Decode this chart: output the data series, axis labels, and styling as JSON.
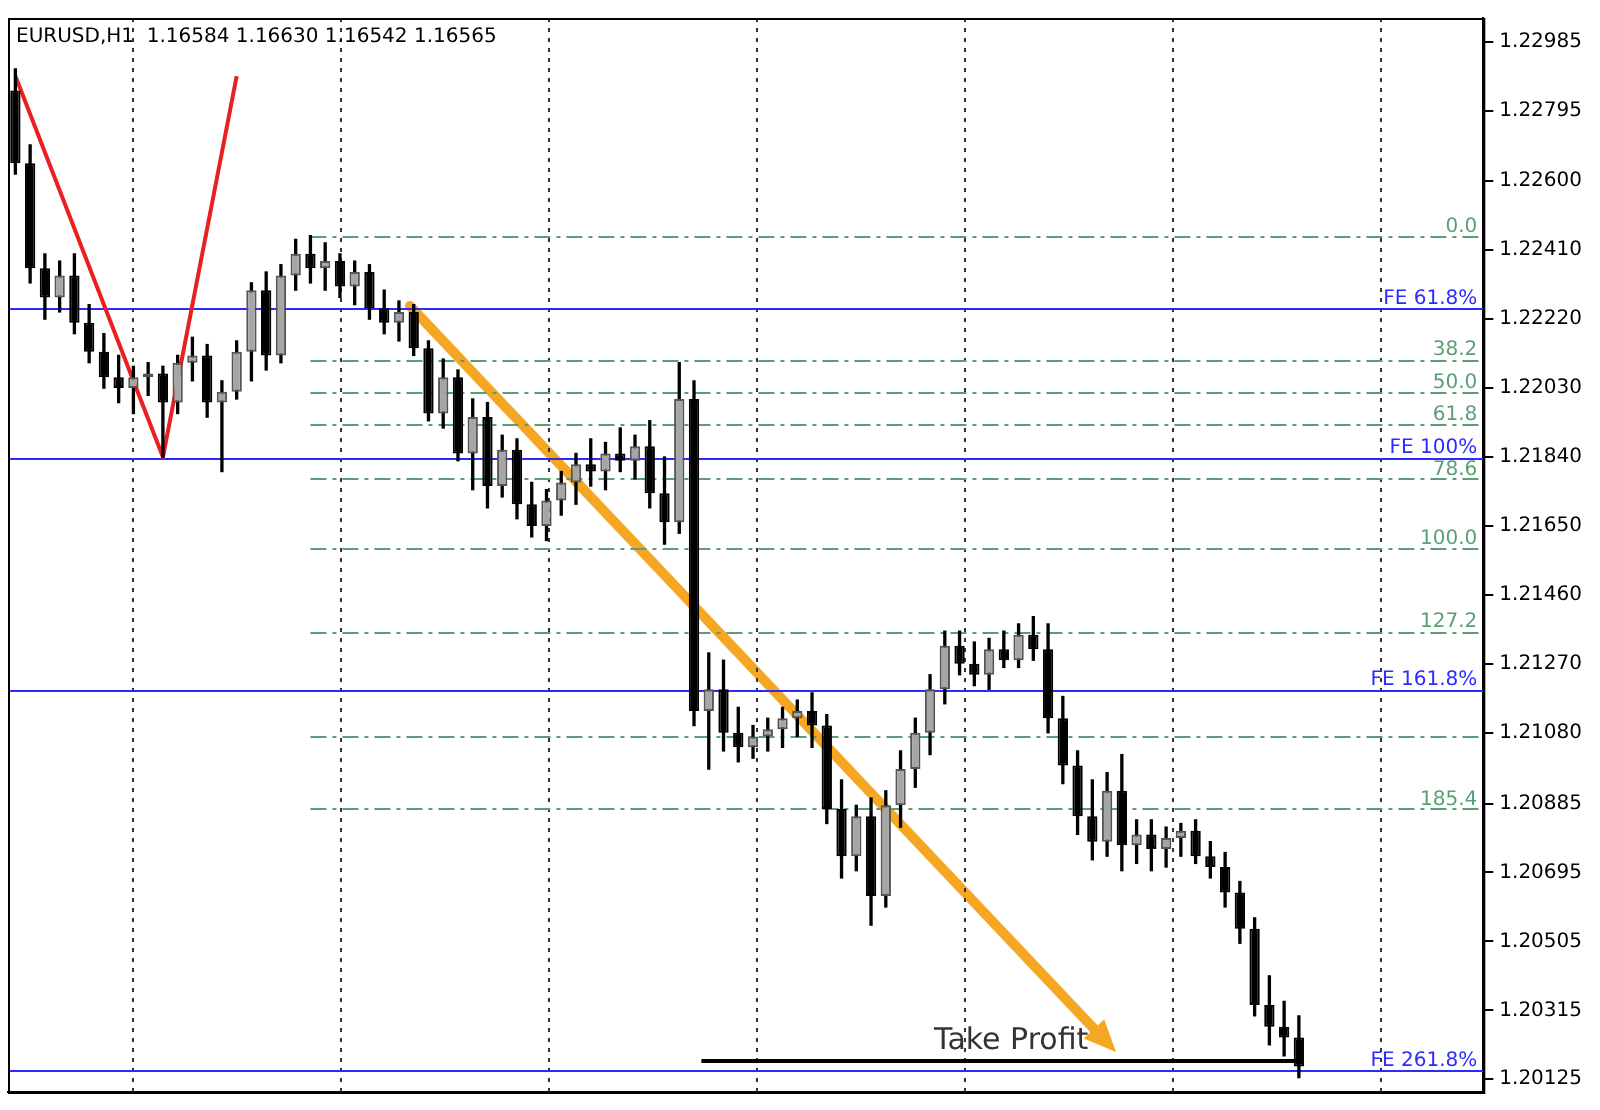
{
  "chart_data": {
    "type": "candlestick",
    "title": "EURUSD,H1  1.16584 1.16630 1.16542 1.16565",
    "tick_labels": "y",
    "legend": false,
    "categories": [
      null,
      null,
      null,
      null,
      null,
      null,
      null,
      null,
      null,
      null,
      null,
      null,
      null,
      null,
      null,
      null,
      null,
      null,
      null,
      null,
      null,
      null,
      null,
      null,
      null,
      null,
      null,
      null,
      null,
      null,
      null,
      null,
      null,
      null,
      null,
      null,
      null,
      null,
      null,
      null,
      null,
      null,
      null,
      null,
      null,
      null,
      null,
      null,
      null,
      null,
      null,
      null,
      null,
      null,
      null,
      null,
      null,
      null,
      null,
      null,
      null,
      null,
      null,
      null,
      null,
      null,
      null,
      null,
      null,
      null,
      null,
      null,
      null,
      null,
      null,
      null,
      null,
      null,
      null,
      null,
      null,
      null,
      null,
      null,
      null,
      null,
      null,
      null,
      null,
      null,
      null,
      null,
      null,
      null,
      null,
      null,
      null,
      null,
      null,
      null
    ],
    "ohlc": [
      [
        1.2285,
        1.2291,
        1.2262,
        1.2265
      ],
      [
        1.2265,
        1.227,
        1.2232,
        1.2236
      ],
      [
        1.2236,
        1.224,
        1.2222,
        1.2228
      ],
      [
        1.2228,
        1.2238,
        1.2224,
        1.2234
      ],
      [
        1.2234,
        1.224,
        1.2218,
        1.2221
      ],
      [
        1.2221,
        1.2226,
        1.221,
        1.2213
      ],
      [
        1.2213,
        1.2218,
        1.2203,
        1.2206
      ],
      [
        1.2206,
        1.2212,
        1.2199,
        1.2203
      ],
      [
        1.2203,
        1.2209,
        1.2196,
        1.2206
      ],
      [
        1.2206,
        1.221,
        1.2201,
        1.2207
      ],
      [
        1.2207,
        1.2209,
        1.2184,
        1.2199
      ],
      [
        1.2199,
        1.2212,
        1.2196,
        1.221
      ],
      [
        1.221,
        1.2217,
        1.2205,
        1.2212
      ],
      [
        1.2212,
        1.2215,
        1.2195,
        1.2199
      ],
      [
        1.2199,
        1.2205,
        1.218,
        1.2202
      ],
      [
        1.2202,
        1.2216,
        1.22,
        1.2213
      ],
      [
        1.2213,
        1.2232,
        1.2205,
        1.223
      ],
      [
        1.223,
        1.2235,
        1.2208,
        1.2212
      ],
      [
        1.2212,
        1.2237,
        1.221,
        1.2234
      ],
      [
        1.2234,
        1.2244,
        1.223,
        1.224
      ],
      [
        1.224,
        1.2245,
        1.2232,
        1.2236
      ],
      [
        1.2236,
        1.2243,
        1.223,
        1.2238
      ],
      [
        1.2238,
        1.224,
        1.2228,
        1.2231
      ],
      [
        1.2231,
        1.2238,
        1.2226,
        1.2235
      ],
      [
        1.2235,
        1.2237,
        1.2222,
        1.2225
      ],
      [
        1.2225,
        1.223,
        1.2218,
        1.2221
      ],
      [
        1.2221,
        1.2227,
        1.2216,
        1.2224
      ],
      [
        1.2224,
        1.2226,
        1.2212,
        1.2214
      ],
      [
        1.2214,
        1.2216,
        1.2194,
        1.2196
      ],
      [
        1.2196,
        1.2211,
        1.2192,
        1.2206
      ],
      [
        1.2206,
        1.2208,
        1.2183,
        1.2185
      ],
      [
        1.2185,
        1.22,
        1.2175,
        1.2195
      ],
      [
        1.2195,
        1.2199,
        1.217,
        1.2176
      ],
      [
        1.2176,
        1.219,
        1.2173,
        1.2186
      ],
      [
        1.2186,
        1.2189,
        1.2167,
        1.2171
      ],
      [
        1.2171,
        1.2177,
        1.2162,
        1.2165
      ],
      [
        1.2165,
        1.2175,
        1.2161,
        1.2172
      ],
      [
        1.2172,
        1.218,
        1.2168,
        1.2177
      ],
      [
        1.2177,
        1.2185,
        1.2171,
        1.2182
      ],
      [
        1.2182,
        1.2189,
        1.2176,
        1.218
      ],
      [
        1.218,
        1.2188,
        1.2175,
        1.2185
      ],
      [
        1.2185,
        1.2192,
        1.218,
        1.2183
      ],
      [
        1.2183,
        1.219,
        1.2178,
        1.2187
      ],
      [
        1.2187,
        1.2194,
        1.217,
        1.2174
      ],
      [
        1.2174,
        1.2184,
        1.216,
        1.2166
      ],
      [
        1.2166,
        1.221,
        1.2163,
        1.22
      ],
      [
        1.22,
        1.2205,
        1.211,
        1.2114
      ],
      [
        1.2114,
        1.213,
        1.2098,
        1.212
      ],
      [
        1.212,
        1.2128,
        1.2103,
        1.2108
      ],
      [
        1.2108,
        1.2115,
        1.21,
        1.2104
      ],
      [
        1.2104,
        1.211,
        1.2101,
        1.2107
      ],
      [
        1.2107,
        1.2112,
        1.2103,
        1.2109
      ],
      [
        1.2109,
        1.2115,
        1.2104,
        1.2112
      ],
      [
        1.2112,
        1.2117,
        1.2107,
        1.2114
      ],
      [
        1.2114,
        1.2119,
        1.2104,
        1.211
      ],
      [
        1.211,
        1.2113,
        1.2083,
        1.2087
      ],
      [
        1.2087,
        1.2095,
        1.2068,
        1.2074
      ],
      [
        1.2074,
        1.2088,
        1.207,
        1.2085
      ],
      [
        1.2085,
        1.209,
        1.2055,
        1.2063
      ],
      [
        1.2063,
        1.2092,
        1.206,
        1.2088
      ],
      [
        1.2088,
        1.2103,
        1.2082,
        1.2098
      ],
      [
        1.2098,
        1.2112,
        1.2093,
        1.2108
      ],
      [
        1.2108,
        1.2124,
        1.2102,
        1.212
      ],
      [
        1.212,
        1.2136,
        1.2116,
        1.2132
      ],
      [
        1.2132,
        1.2136,
        1.2124,
        1.2127
      ],
      [
        1.2127,
        1.2133,
        1.2121,
        1.2124
      ],
      [
        1.2124,
        1.2134,
        1.212,
        1.2131
      ],
      [
        1.2131,
        1.2136,
        1.2126,
        1.2128
      ],
      [
        1.2128,
        1.2138,
        1.2126,
        1.2135
      ],
      [
        1.2135,
        1.214,
        1.2128,
        1.2131
      ],
      [
        1.2131,
        1.2138,
        1.2108,
        1.2112
      ],
      [
        1.2112,
        1.2118,
        1.2094,
        1.2099
      ],
      [
        1.2099,
        1.2103,
        1.208,
        1.2085
      ],
      [
        1.2085,
        1.2095,
        1.2073,
        1.2078
      ],
      [
        1.2078,
        1.2097,
        1.2074,
        1.2092
      ],
      [
        1.2092,
        1.2102,
        1.207,
        1.2077
      ],
      [
        1.2077,
        1.2084,
        1.2072,
        1.208
      ],
      [
        1.208,
        1.2084,
        1.207,
        1.2076
      ],
      [
        1.2076,
        1.2082,
        1.2071,
        1.2079
      ],
      [
        1.2079,
        1.2083,
        1.2074,
        1.2081
      ],
      [
        1.2081,
        1.2084,
        1.2072,
        1.2074
      ],
      [
        1.2074,
        1.2078,
        1.2068,
        1.2071
      ],
      [
        1.2071,
        1.2075,
        1.206,
        1.2064
      ],
      [
        1.2064,
        1.2067,
        1.205,
        1.2054
      ],
      [
        1.2054,
        1.2057,
        1.203,
        1.2033
      ],
      [
        1.2033,
        1.2041,
        1.2022,
        1.2027
      ],
      [
        1.2027,
        1.2034,
        1.2019,
        1.2024
      ],
      [
        1.2024,
        1.203,
        1.2013,
        1.2016
      ],
      null,
      null,
      null,
      null,
      null,
      null,
      null,
      null,
      null,
      null,
      null,
      null
    ],
    "series": [
      {
        "type": "line",
        "color": "#e82020",
        "values": [
          1.2289,
          null,
          null,
          null,
          null,
          null,
          null,
          null,
          null,
          null,
          1.2184,
          null,
          null,
          null,
          null,
          1.2289,
          null,
          null,
          null,
          null,
          null,
          null,
          null,
          null,
          null,
          null,
          null,
          null,
          null,
          null,
          null,
          null,
          null,
          null,
          null,
          null,
          null,
          null,
          null,
          null,
          null,
          null,
          null,
          null,
          null,
          null,
          null,
          null,
          null,
          null,
          null,
          null,
          null,
          null,
          null,
          null,
          null,
          null,
          null,
          null,
          null,
          null,
          null,
          null,
          null,
          null,
          null,
          null,
          null,
          null,
          null,
          null,
          null,
          null,
          null,
          null,
          null,
          null,
          null,
          null,
          null,
          null,
          null,
          null,
          null,
          null,
          null,
          null,
          null,
          null,
          null,
          null,
          null,
          null,
          null,
          null,
          null,
          null,
          null,
          null
        ]
      }
    ],
    "ylim": [
      1.2009,
      1.2305
    ],
    "yticks": [
      1.22985,
      1.22795,
      {
        "value": 1.226,
        "label": "1.22600"
      },
      {
        "value": 1.2241,
        "label": "1.22410"
      },
      {
        "value": 1.2222,
        "label": "1.22220"
      },
      {
        "value": 1.2203,
        "label": "1.22030"
      },
      {
        "value": 1.2184,
        "label": "1.21840"
      },
      {
        "value": 1.2165,
        "label": "1.21650"
      },
      {
        "value": 1.2146,
        "label": "1.21460"
      },
      {
        "value": 1.2127,
        "label": "1.21270"
      },
      {
        "value": 1.2108,
        "label": "1.21080"
      },
      1.20885,
      1.20695,
      1.20505,
      1.20315,
      1.20125
    ],
    "annotations": [
      {
        "text": "0.0",
        "y": 1.2245
      },
      {
        "text": "38.2",
        "y": 1.2211
      },
      {
        "text": "50.0",
        "y": 1.2202
      },
      {
        "text": "61.8",
        "y": 1.2193
      },
      {
        "text": "78.6",
        "y": 1.2178
      },
      {
        "text": "100.0",
        "y": 1.2159
      },
      {
        "text": "127.2",
        "y": 1.2136
      },
      {
        "text": "185.4",
        "y": 1.2087
      }
    ],
    "ref_lines": [
      {
        "axis": "y",
        "value": 1.2245,
        "color": "#5a9e74",
        "line_style": "dashed"
      },
      {
        "axis": "y",
        "value": 1.2211,
        "color": "#5a9e74",
        "line_style": "dashed"
      },
      {
        "axis": "y",
        "value": 1.2202,
        "color": "#5a9e74",
        "line_style": "dashed"
      },
      {
        "axis": "y",
        "value": 1.2193,
        "color": "#5a9e74",
        "line_style": "dashed"
      },
      {
        "axis": "y",
        "value": 1.2178,
        "color": "#5a9e74",
        "line_style": "dashed"
      },
      {
        "axis": "y",
        "value": 1.2159,
        "color": "#5a9e74",
        "line_style": "dashed"
      },
      {
        "axis": "y",
        "value": 1.2136,
        "color": "#5a9e74",
        "line_style": "dashed"
      },
      {
        "axis": "y",
        "value": 1.2107,
        "color": "#5a9e74",
        "line_style": "dashed"
      },
      {
        "axis": "y",
        "value": 1.2087,
        "color": "#5a9e74",
        "line_style": "dashed"
      },
      {
        "axis": "y",
        "value": 1.2225,
        "label": "FE 61.8%",
        "color": "#2b2bff",
        "line_style": "solid"
      },
      {
        "axis": "y",
        "value": 1.2184,
        "label": "FE 100%",
        "color": "#2b2bff",
        "line_style": "solid"
      },
      {
        "axis": "y",
        "value": 1.212,
        "label": "FE 161.8%",
        "color": "#2b2bff",
        "line_style": "solid"
      },
      {
        "axis": "y",
        "value": 1.2015,
        "label": "FE 261.8%",
        "color": "#2b2bff",
        "line_style": "solid"
      },
      {
        "axis": "y",
        "value": 1.2018,
        "label": "Take Profit",
        "color": "#000000"
      }
    ]
  }
}
